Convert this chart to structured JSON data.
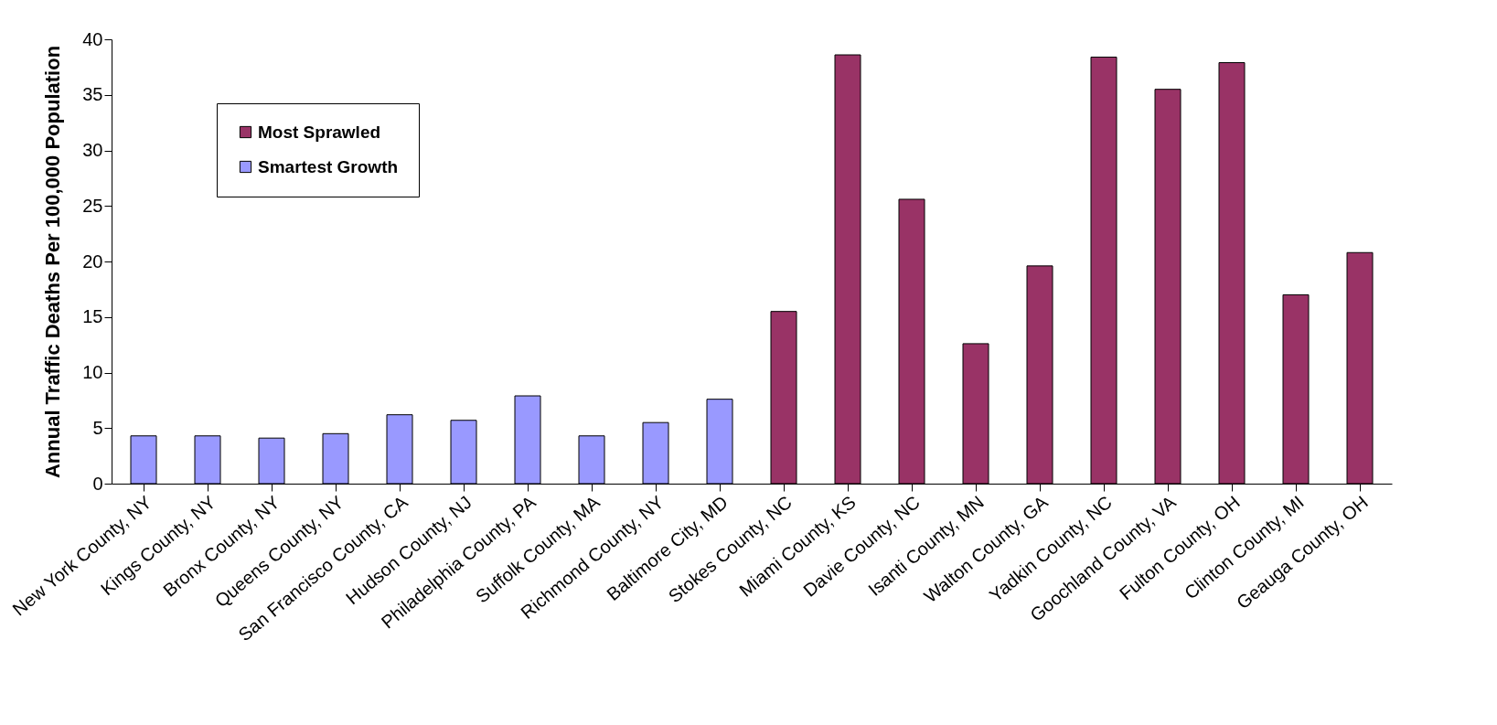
{
  "chart_data": {
    "type": "bar",
    "ylabel": "Annual Traffic Deaths Per 100,000 Population",
    "categories": [
      "New York County, NY",
      "Kings County, NY",
      "Bronx County, NY",
      "Queens County, NY",
      "San Francisco County, CA",
      "Hudson County, NJ",
      "Philadelphia County, PA",
      "Suffolk County, MA",
      "Richmond County, NY",
      "Baltimore City, MD",
      "Stokes County, NC",
      "Miami County, KS",
      "Davie County, NC",
      "Isanti County, MN",
      "Walton County, GA",
      "Yadkin County, NC",
      "Goochland County, VA",
      "Fulton County, OH",
      "Clinton County, MI",
      "Geauga County, OH"
    ],
    "series": [
      {
        "name": "Most Sprawled",
        "color": "#993366",
        "values": [
          null,
          null,
          null,
          null,
          null,
          null,
          null,
          null,
          null,
          null,
          15.5,
          38.6,
          25.6,
          12.6,
          19.6,
          38.4,
          35.5,
          37.9,
          17.0,
          20.8
        ]
      },
      {
        "name": "Smartest Growth",
        "color": "#9999ff",
        "values": [
          4.3,
          4.3,
          4.1,
          4.5,
          6.2,
          5.7,
          7.9,
          4.3,
          5.5,
          7.6,
          null,
          null,
          null,
          null,
          null,
          null,
          null,
          null,
          null,
          null
        ]
      }
    ],
    "ylim": [
      0,
      40
    ],
    "yticks": [
      0,
      5,
      10,
      15,
      20,
      25,
      30,
      35,
      40
    ],
    "grid": false,
    "legend": "top left"
  }
}
